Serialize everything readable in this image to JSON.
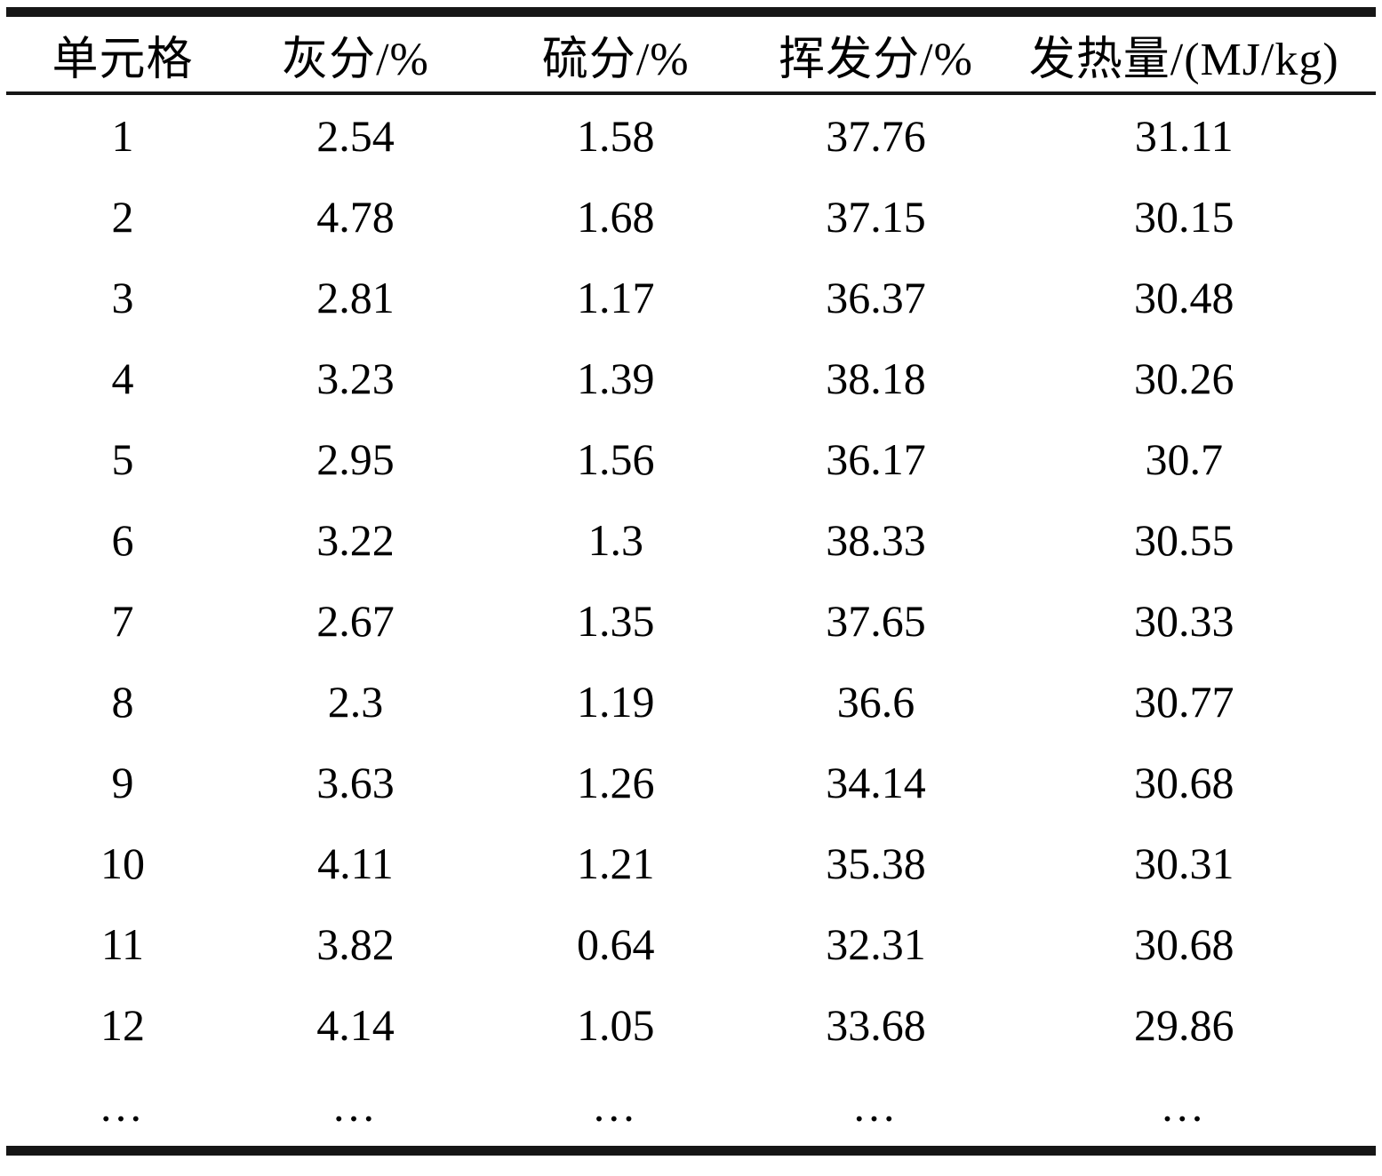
{
  "table": {
    "columns": [
      {
        "label": "单元格"
      },
      {
        "label": "灰分/%"
      },
      {
        "label": "硫分/%"
      },
      {
        "label": "挥发分/%"
      },
      {
        "label": "发热量/(MJ/kg)"
      }
    ],
    "rows": [
      {
        "cell": "1",
        "ash": "2.54",
        "sulfur": "1.58",
        "volatile": "37.76",
        "calorific": "31.11"
      },
      {
        "cell": "2",
        "ash": "4.78",
        "sulfur": "1.68",
        "volatile": "37.15",
        "calorific": "30.15"
      },
      {
        "cell": "3",
        "ash": "2.81",
        "sulfur": "1.17",
        "volatile": "36.37",
        "calorific": "30.48"
      },
      {
        "cell": "4",
        "ash": "3.23",
        "sulfur": "1.39",
        "volatile": "38.18",
        "calorific": "30.26"
      },
      {
        "cell": "5",
        "ash": "2.95",
        "sulfur": "1.56",
        "volatile": "36.17",
        "calorific": "30.7"
      },
      {
        "cell": "6",
        "ash": "3.22",
        "sulfur": "1.3",
        "volatile": "38.33",
        "calorific": "30.55"
      },
      {
        "cell": "7",
        "ash": "2.67",
        "sulfur": "1.35",
        "volatile": "37.65",
        "calorific": "30.33"
      },
      {
        "cell": "8",
        "ash": "2.3",
        "sulfur": "1.19",
        "volatile": "36.6",
        "calorific": "30.77"
      },
      {
        "cell": "9",
        "ash": "3.63",
        "sulfur": "1.26",
        "volatile": "34.14",
        "calorific": "30.68"
      },
      {
        "cell": "10",
        "ash": "4.11",
        "sulfur": "1.21",
        "volatile": "35.38",
        "calorific": "30.31"
      },
      {
        "cell": "11",
        "ash": "3.82",
        "sulfur": "0.64",
        "volatile": "32.31",
        "calorific": "30.68"
      },
      {
        "cell": "12",
        "ash": "4.14",
        "sulfur": "1.05",
        "volatile": "33.68",
        "calorific": "29.86"
      },
      {
        "cell": "…",
        "ash": "…",
        "sulfur": "…",
        "volatile": "…",
        "calorific": "…",
        "is_ellipsis": true
      }
    ]
  },
  "colors": {
    "rule": "#161616",
    "text": "#000000",
    "background": "#ffffff"
  }
}
